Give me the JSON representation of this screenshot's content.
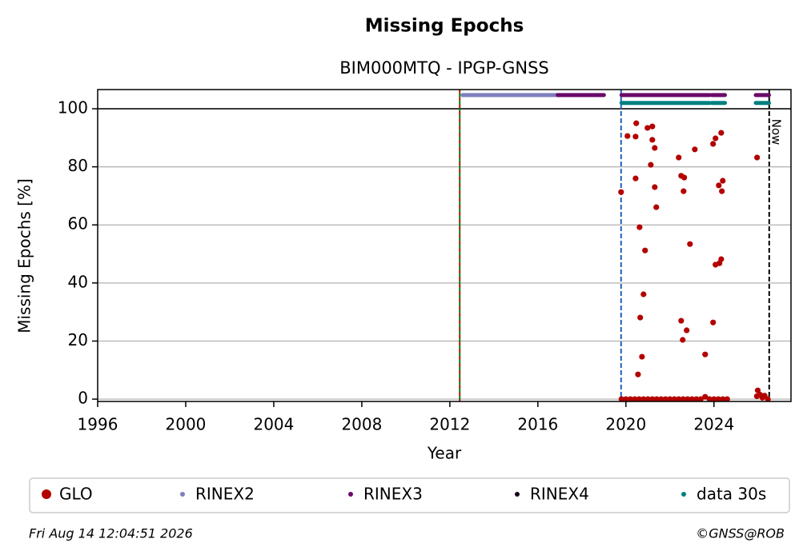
{
  "chart_data": {
    "type": "scatter",
    "title": "Missing Epochs",
    "subtitle": "BIM000MTQ - IPGP-GNSS",
    "xlabel": "Year",
    "ylabel": "Missing Epochs [%]",
    "xlim": [
      1996,
      2027.5
    ],
    "ylim": [
      -0.8,
      106.6
    ],
    "xticks": [
      1996,
      2000,
      2004,
      2008,
      2012,
      2016,
      2020,
      2024
    ],
    "yticks": [
      0,
      20,
      40,
      60,
      80,
      100
    ],
    "grid": true,
    "hline": 100,
    "markers": [
      {
        "x": 2012.45,
        "color": "#008000",
        "dash_color": "#cc0000"
      },
      {
        "x": 2019.78,
        "color": "#1f5fbf"
      },
      {
        "x": 2026.51,
        "color": "#000000",
        "label": "Now"
      }
    ],
    "series": [
      {
        "name": "GLO",
        "color": "#b30000",
        "x": [
          2019.78,
          2020.07,
          2020.44,
          2020.47,
          2020.44,
          2020.62,
          2020.55,
          2020.65,
          2020.73,
          2020.8,
          2020.87,
          2020.98,
          2021.13,
          2021.2,
          2021.2,
          2021.31,
          2021.31,
          2021.38,
          2022.4,
          2022.51,
          2022.51,
          2022.58,
          2022.65,
          2022.62,
          2022.76,
          2022.91,
          2023.13,
          2023.6,
          2023.96,
          2023.96,
          2024.07,
          2024.07,
          2024.22,
          2024.25,
          2024.33,
          2024.33,
          2024.36,
          2024.4,
          2025.96,
          2025.99,
          2019.8,
          2020.0,
          2020.2,
          2020.4,
          2020.6,
          2020.8,
          2021.0,
          2021.2,
          2021.4,
          2021.6,
          2021.8,
          2022.0,
          2022.2,
          2022.4,
          2022.6,
          2022.8,
          2023.0,
          2023.2,
          2023.4,
          2023.6,
          2023.8,
          2024.0,
          2024.2,
          2024.4,
          2024.6,
          2025.95,
          2026.1,
          2026.2,
          2026.3,
          2026.45
        ],
        "values": [
          71.3,
          90.6,
          90.4,
          95.0,
          76.0,
          59.2,
          8.5,
          28.1,
          14.6,
          36.1,
          51.2,
          93.4,
          80.7,
          93.9,
          89.3,
          86.5,
          73.0,
          66.1,
          83.2,
          27.0,
          76.9,
          20.4,
          76.3,
          71.6,
          23.7,
          53.4,
          86.0,
          15.4,
          87.9,
          26.4,
          89.8,
          46.3,
          73.6,
          46.8,
          48.2,
          91.7,
          71.6,
          75.2,
          83.2,
          3.0,
          0,
          0,
          0,
          0,
          0,
          0,
          0,
          0,
          0,
          0,
          0,
          0,
          0,
          0,
          0,
          0,
          0,
          0,
          0,
          0.8,
          0,
          0,
          0,
          0,
          0,
          1.0,
          1.5,
          0.5,
          1.2,
          0
        ]
      },
      {
        "name": "RINEX2",
        "color": "#7f7fbf",
        "level": 104.7,
        "segments": [
          [
            2012.58,
            2017.0
          ]
        ]
      },
      {
        "name": "RINEX3",
        "color": "#6a0a6a",
        "level": 104.7,
        "segments": [
          [
            2016.9,
            2019.0
          ],
          [
            2019.8,
            2021.45
          ],
          [
            2021.5,
            2023.8
          ],
          [
            2023.9,
            2024.5
          ],
          [
            2025.9,
            2026.5
          ]
        ]
      },
      {
        "name": "RINEX4",
        "color": "#1a0020",
        "level": 104.7,
        "segments": []
      },
      {
        "name": "data 30s",
        "color": "#008080",
        "level": 102.0,
        "segments": [
          [
            2019.8,
            2023.8
          ],
          [
            2023.9,
            2024.5
          ],
          [
            2025.9,
            2026.5
          ]
        ]
      }
    ],
    "footer_left": "Fri Aug 14 12:04:51 2026",
    "footer_right": "©GNSS@ROB"
  }
}
